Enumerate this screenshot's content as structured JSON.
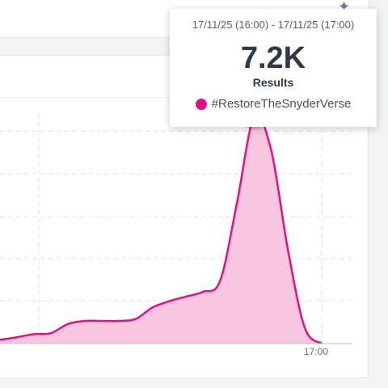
{
  "tooltip": {
    "range": "17/11/25 (16:00) - 17/11/25 (17:00)",
    "value": "7.2K",
    "value_label": "Results",
    "series_name": "#RestoreTheSnyderVerse"
  },
  "colors": {
    "series": "#e5107f",
    "area_fill": "#f9c6e0",
    "grid": "#dcdfe3"
  },
  "icons": {
    "sparkle": "sparkle-icon"
  },
  "chart_data": {
    "type": "area",
    "x_tick_labels": [
      "17:00"
    ],
    "series": [
      {
        "name": "#RestoreTheSnyderVerse",
        "values": [
          120,
          200,
          300,
          330,
          620,
          720,
          720,
          720,
          780,
          1150,
          1350,
          1500,
          1650,
          2000,
          4500,
          7200,
          6200,
          3000,
          500,
          0
        ]
      }
    ],
    "highlight_index": 15,
    "ylim": [
      0,
      7600
    ],
    "grid": true
  }
}
